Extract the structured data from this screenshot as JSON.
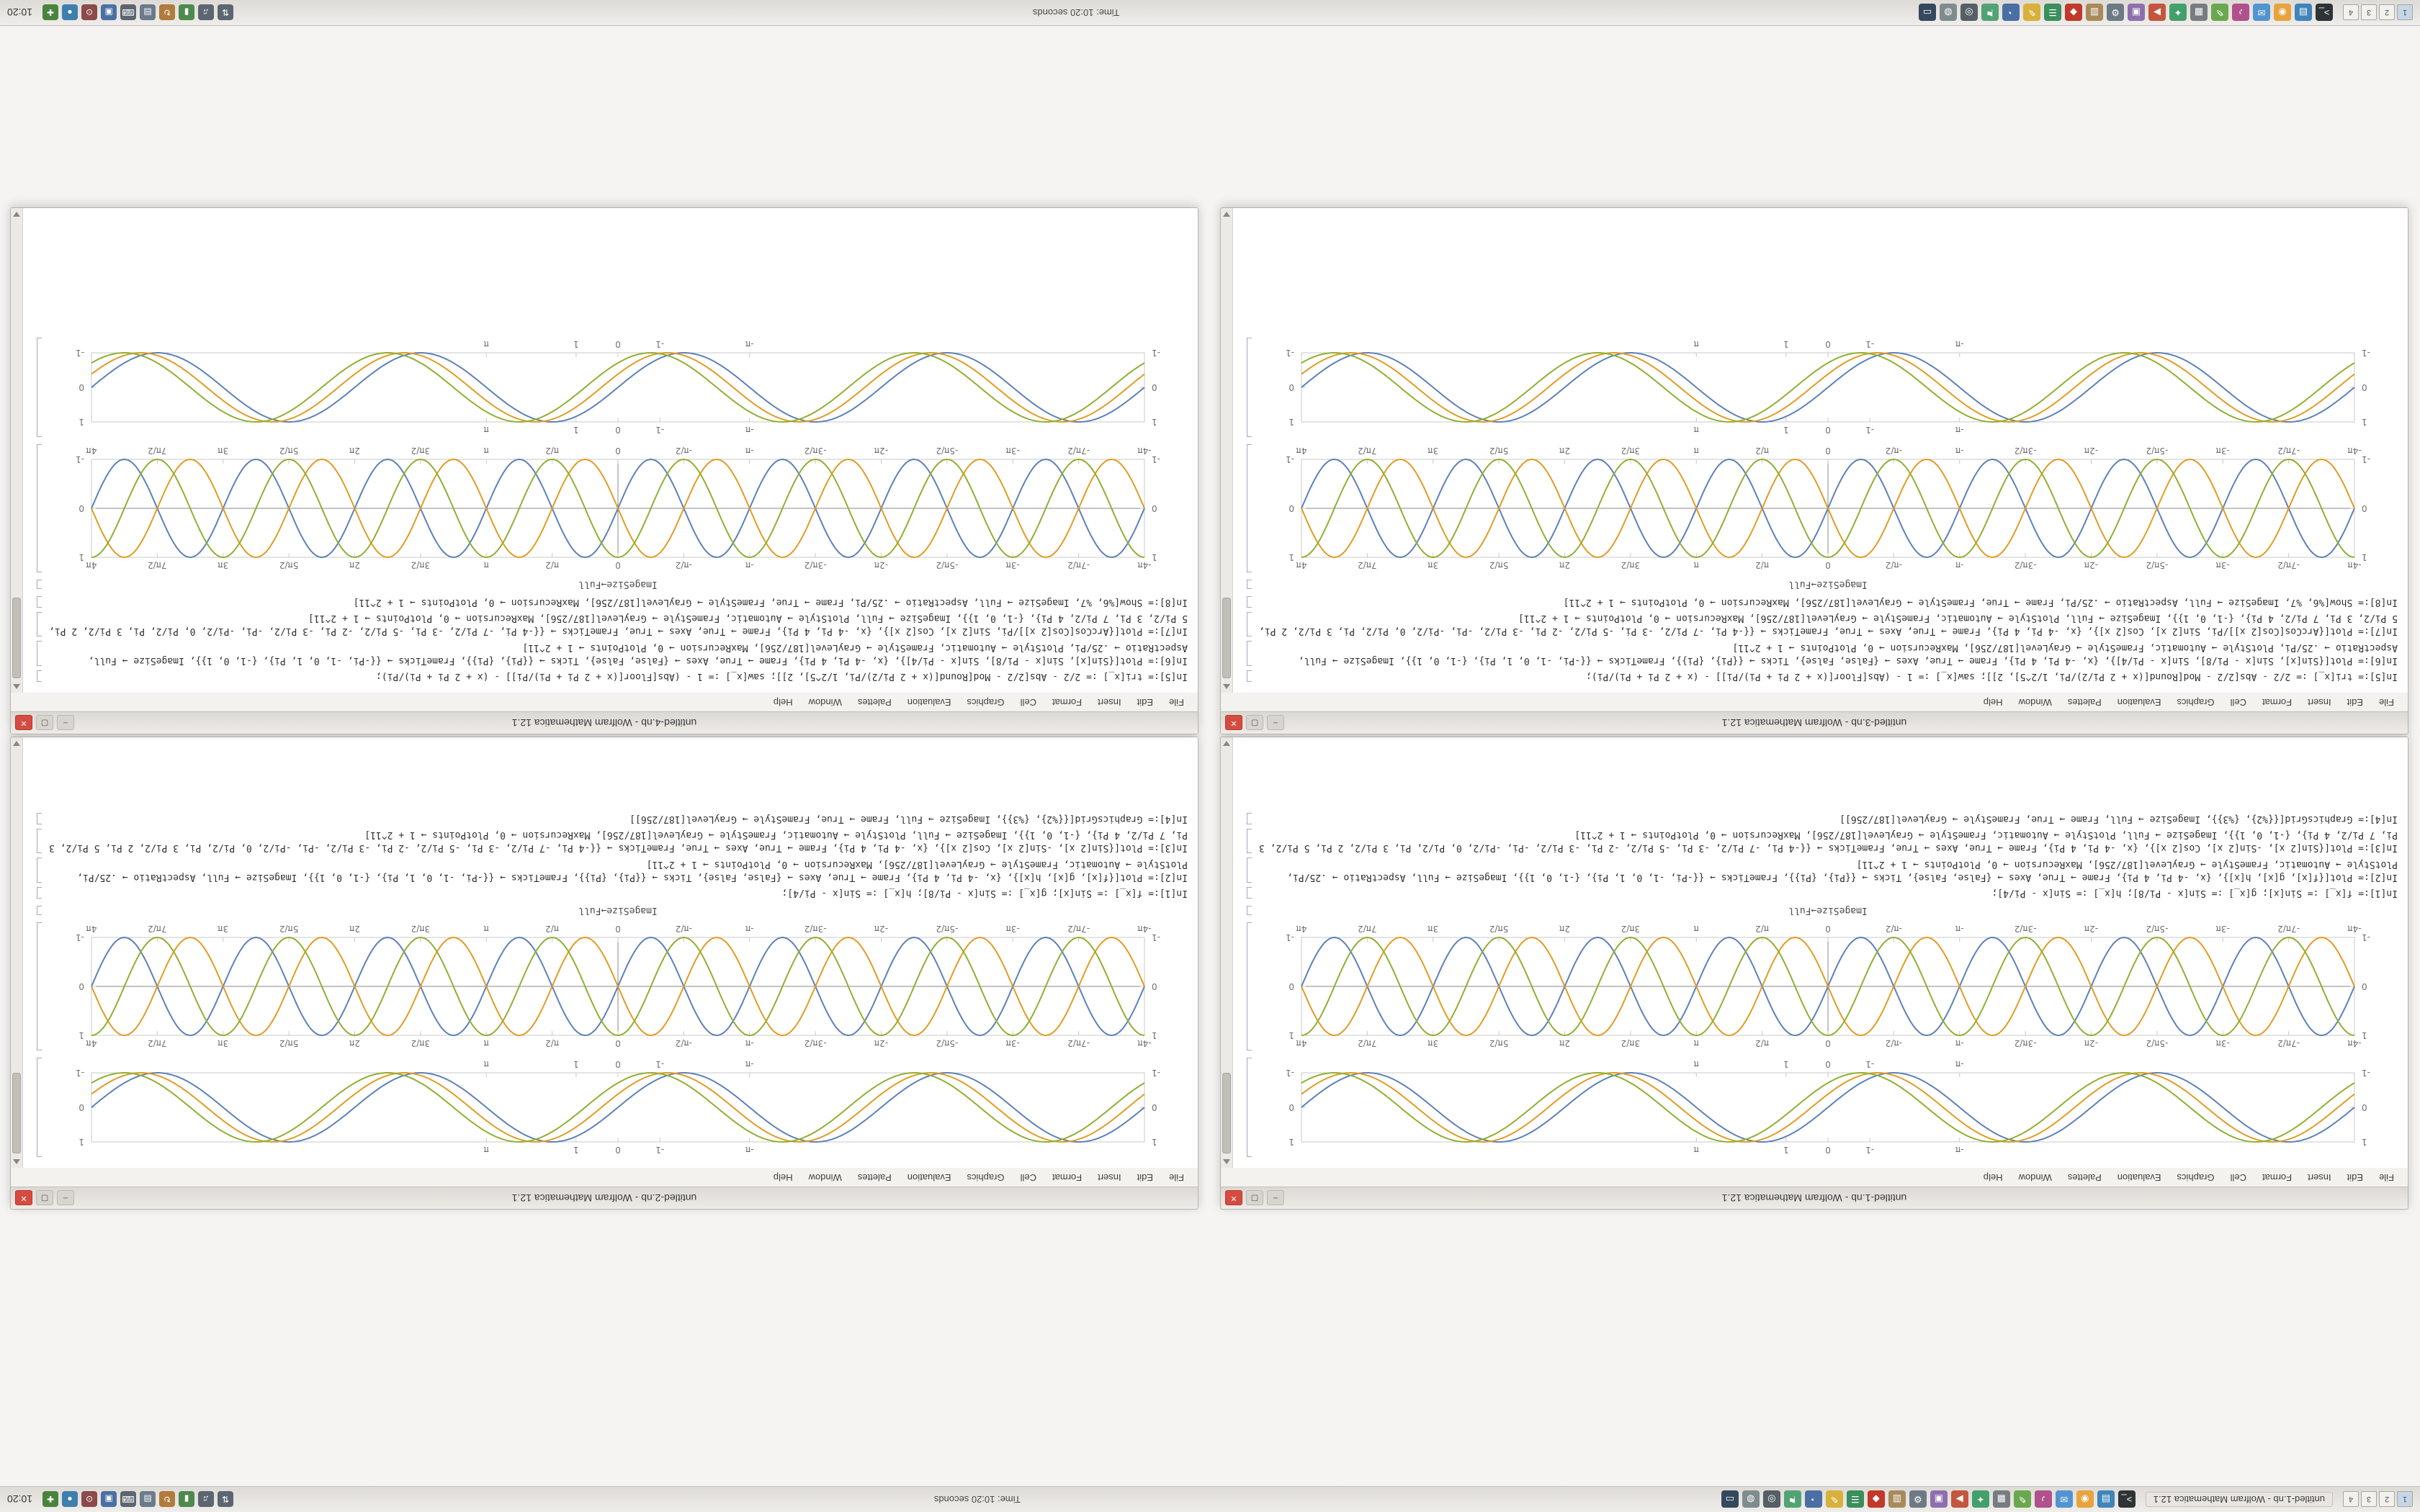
{
  "panels": {
    "top": {
      "workspaces": [
        "1",
        "2",
        "3",
        "4"
      ],
      "task_entry": "untitled-1.nb - Wolfram Mathematica 12.1",
      "center_text": "Time: 10:20 seconds",
      "apps": [
        {
          "name": "terminal",
          "glyph": ">_",
          "bg": "#2e3436"
        },
        {
          "name": "files",
          "glyph": "▤",
          "bg": "#3f84ba"
        },
        {
          "name": "browser",
          "glyph": "◉",
          "bg": "#e8a33d"
        },
        {
          "name": "mail",
          "glyph": "✉",
          "bg": "#5294cf"
        },
        {
          "name": "music",
          "glyph": "♪",
          "bg": "#b0508c"
        },
        {
          "name": "editor",
          "glyph": "✎",
          "bg": "#6aa84f"
        },
        {
          "name": "calculator",
          "glyph": "▦",
          "bg": "#777c82"
        },
        {
          "name": "chat",
          "glyph": "✦",
          "bg": "#43a06c"
        },
        {
          "name": "video",
          "glyph": "▶",
          "bg": "#c4563e"
        },
        {
          "name": "image-viewer",
          "glyph": "▣",
          "bg": "#8e6fae"
        },
        {
          "name": "settings",
          "glyph": "⚙",
          "bg": "#6d7a86"
        },
        {
          "name": "archive",
          "glyph": "▥",
          "bg": "#a98a5c"
        },
        {
          "name": "pdf",
          "glyph": "◆",
          "bg": "#c0392b"
        },
        {
          "name": "spreadsheet",
          "glyph": "☰",
          "bg": "#3a8f5c"
        },
        {
          "name": "notes",
          "glyph": "✎",
          "bg": "#d8b13c"
        },
        {
          "name": "clock-app",
          "glyph": "◔",
          "bg": "#4a6fa5"
        },
        {
          "name": "maps",
          "glyph": "⚑",
          "bg": "#52a373"
        },
        {
          "name": "camera",
          "glyph": "◎",
          "bg": "#555f66"
        },
        {
          "name": "disk",
          "glyph": "◍",
          "bg": "#7f8c8d"
        },
        {
          "name": "monitor",
          "glyph": "▭",
          "bg": "#34495e"
        }
      ],
      "tray": [
        {
          "name": "network",
          "glyph": "⇅",
          "bg": "#5c6670"
        },
        {
          "name": "volume",
          "glyph": "♫",
          "bg": "#5c6670"
        },
        {
          "name": "battery",
          "glyph": "▮",
          "bg": "#4d8a4d"
        },
        {
          "name": "updates",
          "glyph": "↻",
          "bg": "#b07b3c"
        },
        {
          "name": "clipboard",
          "glyph": "▤",
          "bg": "#6a7b8c"
        },
        {
          "name": "keyboard",
          "glyph": "⌨",
          "bg": "#5c6670"
        },
        {
          "name": "display",
          "glyph": "▣",
          "bg": "#4a6fa5"
        },
        {
          "name": "power",
          "glyph": "⊙",
          "bg": "#8c4a4a"
        },
        {
          "name": "notifications",
          "glyph": "●",
          "bg": "#3f7fae"
        },
        {
          "name": "shield",
          "glyph": "✚",
          "bg": "#49843f"
        }
      ],
      "clock": "10:20"
    },
    "bottom": {
      "workspaces": [
        "1",
        "2",
        "3",
        "4"
      ],
      "center_text": "Time: 10:20 seconds",
      "apps": [
        {
          "name": "terminal",
          "glyph": ">_",
          "bg": "#2e3436"
        },
        {
          "name": "files",
          "glyph": "▤",
          "bg": "#3f84ba"
        },
        {
          "name": "browser",
          "glyph": "◉",
          "bg": "#e8a33d"
        },
        {
          "name": "mail",
          "glyph": "✉",
          "bg": "#5294cf"
        },
        {
          "name": "music",
          "glyph": "♪",
          "bg": "#b0508c"
        },
        {
          "name": "editor",
          "glyph": "✎",
          "bg": "#6aa84f"
        },
        {
          "name": "calculator",
          "glyph": "▦",
          "bg": "#777c82"
        },
        {
          "name": "chat",
          "glyph": "✦",
          "bg": "#43a06c"
        },
        {
          "name": "video",
          "glyph": "▶",
          "bg": "#c4563e"
        },
        {
          "name": "image-viewer",
          "glyph": "▣",
          "bg": "#8e6fae"
        },
        {
          "name": "settings",
          "glyph": "⚙",
          "bg": "#6d7a86"
        },
        {
          "name": "archive",
          "glyph": "▥",
          "bg": "#a98a5c"
        },
        {
          "name": "pdf",
          "glyph": "◆",
          "bg": "#c0392b"
        },
        {
          "name": "spreadsheet",
          "glyph": "☰",
          "bg": "#3a8f5c"
        },
        {
          "name": "notes",
          "glyph": "✎",
          "bg": "#d8b13c"
        },
        {
          "name": "clock-app",
          "glyph": "◔",
          "bg": "#4a6fa5"
        },
        {
          "name": "maps",
          "glyph": "⚑",
          "bg": "#52a373"
        },
        {
          "name": "camera",
          "glyph": "◎",
          "bg": "#555f66"
        },
        {
          "name": "disk",
          "glyph": "◍",
          "bg": "#7f8c8d"
        },
        {
          "name": "monitor",
          "glyph": "▭",
          "bg": "#34495e"
        }
      ],
      "tray": [
        {
          "name": "network",
          "glyph": "⇅",
          "bg": "#5c6670"
        },
        {
          "name": "volume",
          "glyph": "♫",
          "bg": "#5c6670"
        },
        {
          "name": "battery",
          "glyph": "▮",
          "bg": "#4d8a4d"
        },
        {
          "name": "updates",
          "glyph": "↻",
          "bg": "#b07b3c"
        },
        {
          "name": "clipboard",
          "glyph": "▤",
          "bg": "#6a7b8c"
        },
        {
          "name": "keyboard",
          "glyph": "⌨",
          "bg": "#5c6670"
        },
        {
          "name": "display",
          "glyph": "▣",
          "bg": "#4a6fa5"
        },
        {
          "name": "power",
          "glyph": "⊙",
          "bg": "#8c4a4a"
        },
        {
          "name": "notifications",
          "glyph": "●",
          "bg": "#3f7fae"
        },
        {
          "name": "shield",
          "glyph": "✚",
          "bg": "#49843f"
        }
      ],
      "clock": "10:20"
    }
  },
  "windows": {
    "menu": [
      "File",
      "Edit",
      "Insert",
      "Format",
      "Cell",
      "Graphics",
      "Evaluation",
      "Palettes",
      "Window",
      "Help"
    ],
    "controls": {
      "minimize": "–",
      "maximize": "▢",
      "close": "✕"
    },
    "titles": {
      "tl": "untitled-1.nb - Wolfram Mathematica 12.1",
      "tr": "untitled-2.nb - Wolfram Mathematica 12.1",
      "bl": "untitled-3.nb - Wolfram Mathematica 12.1",
      "br": "untitled-4.nb - Wolfram Mathematica 12.1"
    }
  },
  "cells": {
    "caption": "ImageSize→Full",
    "code_a": [
      "In[1]:= f[x_] := Sin[x]; g[x_] := Sin[x - Pi/8]; h[x_] := Sin[x - Pi/4];",
      "In[2]:= Plot[{f[x], g[x], h[x]}, {x, -4 Pi, 4 Pi}, Frame → True, Axes → {False, False}, Ticks → {{Pi}, {Pi}}, FrameTicks → {{-Pi, -1, 0, 1, Pi}, {-1, 0, 1}}, ImageSize → Full, AspectRatio → .25/Pi, PlotStyle → Automatic, FrameStyle → GrayLevel[187/256], MaxRecursion → 0, PlotPoints → 1 + 2^11]",
      "In[3]:= Plot[{Sin[2 x], -Sin[2 x], Cos[2 x]}, {x, -4 Pi, 4 Pi}, Frame → True, Axes → True, FrameTicks → {{-4 Pi, -7 Pi/2, -3 Pi, -5 Pi/2, -2 Pi, -3 Pi/2, -Pi, -Pi/2, 0, Pi/2, Pi, 3 Pi/2, 2 Pi, 5 Pi/2, 3 Pi, 7 Pi/2, 4 Pi}, {-1, 0, 1}}, ImageSize → Full, PlotStyle → Automatic, FrameStyle → GrayLevel[187/256], MaxRecursion → 0, PlotPoints → 1 + 2^11]",
      "In[4]:= GraphicsGrid[{{%2}, {%3}}, ImageSize → Full, Frame → True, FrameStyle → GrayLevel[187/256]]"
    ],
    "code_b": [
      "In[5]:= tri[x_] := 2/2 - Abs[2/2 - Mod[Round[(x + 2 Pi/2)/Pi, 1/2^5], 2]]; saw[x_] := 1 - (Abs[Floor[(x + 2 Pi + Pi)/Pi]] - (x + 2 Pi + Pi)/Pi);",
      "In[6]:= Plot[{Sin[x], Sin[x - Pi/8], Sin[x - Pi/4]}, {x, -4 Pi, 4 Pi}, Frame → True, Axes → {False, False}, Ticks → {{Pi}, {Pi}}, FrameTicks → {{-Pi, -1, 0, 1, Pi}, {-1, 0, 1}}, ImageSize → Full, AspectRatio → .25/Pi, PlotStyle → Automatic, FrameStyle → GrayLevel[187/256], MaxRecursion → 0, PlotPoints → 1 + 2^11]",
      "In[7]:= Plot[{ArcCos[Cos[2 x]]/Pi, Sin[2 x], Cos[2 x]}, {x, -4 Pi, 4 Pi}, Frame → True, Axes → True, FrameTicks → {{-4 Pi, -7 Pi/2, -3 Pi, -5 Pi/2, -2 Pi, -3 Pi/2, -Pi, -Pi/2, 0, Pi/2, Pi, 3 Pi/2, 2 Pi, 5 Pi/2, 3 Pi, 7 Pi/2, 4 Pi}, {-1, 0, 1}}, ImageSize → Full, PlotStyle → Automatic, FrameStyle → GrayLevel[187/256], MaxRecursion → 0, PlotPoints → 1 + 2^11]",
      "In[8]:= Show[%6, %7, ImageSize → Full, AspectRatio → .25/Pi, Frame → True, FrameStyle → GrayLevel[187/256], MaxRecursion → 0, PlotPoints → 1 + 2^11]"
    ]
  },
  "chart_data": [
    {
      "id": "framed-sine-triple",
      "type": "line",
      "title": "",
      "xlabel": "",
      "ylabel": "",
      "x_range": [
        -12.5664,
        12.5664
      ],
      "ylim": [
        -1,
        1
      ],
      "frame": true,
      "axes": false,
      "grid": false,
      "legend_position": "none",
      "xticks": [
        [
          -3.1416,
          "-π"
        ],
        [
          -1,
          "-1"
        ],
        [
          0,
          "0"
        ],
        [
          1,
          "1"
        ],
        [
          3.1416,
          "π"
        ]
      ],
      "yticks": [
        [
          -1,
          "-1"
        ],
        [
          0,
          "0"
        ],
        [
          1,
          "1"
        ]
      ],
      "series": [
        {
          "name": "Sin[x]",
          "fn": "sin",
          "freq": 1,
          "phase": 0,
          "color": "#5e81b5"
        },
        {
          "name": "Sin[x - π/8]",
          "fn": "sin",
          "freq": 1,
          "phase": -0.3927,
          "color": "#e19c24"
        },
        {
          "name": "Sin[x - π/4]",
          "fn": "sin",
          "freq": 1,
          "phase": -0.7854,
          "color": "#8fb032"
        }
      ]
    },
    {
      "id": "axes-wave-triple",
      "type": "line",
      "title": "",
      "xlabel": "",
      "ylabel": "",
      "x_range": [
        -12.5664,
        12.5664
      ],
      "ylim": [
        -1,
        1
      ],
      "frame": true,
      "axes": true,
      "grid": false,
      "legend_position": "none",
      "xticks": [
        [
          -12.5664,
          "-4π"
        ],
        [
          -10.9956,
          "-7π/2"
        ],
        [
          -9.4248,
          "-3π"
        ],
        [
          -7.854,
          "-5π/2"
        ],
        [
          -6.2832,
          "-2π"
        ],
        [
          -4.7124,
          "-3π/2"
        ],
        [
          -3.1416,
          "-π"
        ],
        [
          -1.5708,
          "-π/2"
        ],
        [
          0,
          "0"
        ],
        [
          1.5708,
          "π/2"
        ],
        [
          3.1416,
          "π"
        ],
        [
          4.7124,
          "3π/2"
        ],
        [
          6.2832,
          "2π"
        ],
        [
          7.854,
          "5π/2"
        ],
        [
          9.4248,
          "3π"
        ],
        [
          10.9956,
          "7π/2"
        ],
        [
          12.5664,
          "4π"
        ]
      ],
      "yticks": [
        [
          -1,
          "-1"
        ],
        [
          0,
          "0"
        ],
        [
          1,
          "1"
        ]
      ],
      "series": [
        {
          "name": "Sin[2x]",
          "fn": "sin",
          "freq": 2,
          "phase": 0,
          "color": "#5e81b5"
        },
        {
          "name": "-Sin[2x]",
          "fn": "sin",
          "freq": 2,
          "phase": 3.1416,
          "color": "#e19c24"
        },
        {
          "name": "Cos[2x]",
          "fn": "cos",
          "freq": 2,
          "phase": 0,
          "color": "#8fb032"
        }
      ]
    }
  ],
  "colors": {
    "series": [
      "#5e81b5",
      "#e19c24",
      "#8fb032"
    ],
    "frame": "#c9c9c9",
    "axis": "#8a8a8a",
    "tick_text": "#6e6e6e",
    "close_button": "#d64b40"
  }
}
